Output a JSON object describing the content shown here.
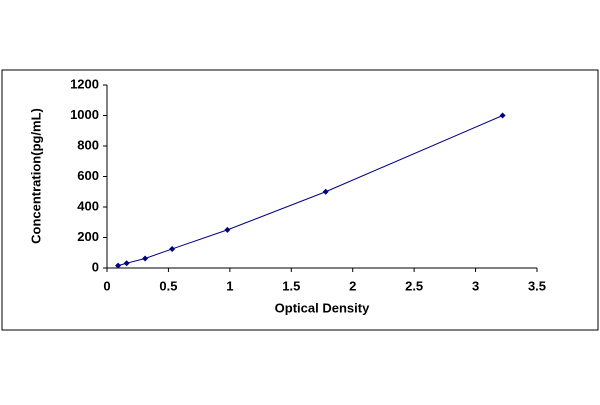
{
  "chart_data": {
    "type": "scatter",
    "x_label": "Optical Density",
    "y_label": "Concentration(pg/mL)",
    "x": [
      0.09,
      0.16,
      0.31,
      0.53,
      0.98,
      1.78,
      3.22
    ],
    "series": [
      {
        "color": "#000080",
        "values": [
          15.6,
          31.25,
          62.5,
          125,
          250,
          500,
          1000
        ]
      }
    ],
    "connect": true,
    "xlim": [
      0,
      3.5
    ],
    "xticks": [
      0,
      0.5,
      1,
      1.5,
      2,
      2.5,
      3,
      3.5
    ],
    "ylim": [
      0,
      1200
    ],
    "yticks": [
      0,
      200,
      400,
      600,
      800,
      1000,
      1200
    ],
    "grid": false
  }
}
